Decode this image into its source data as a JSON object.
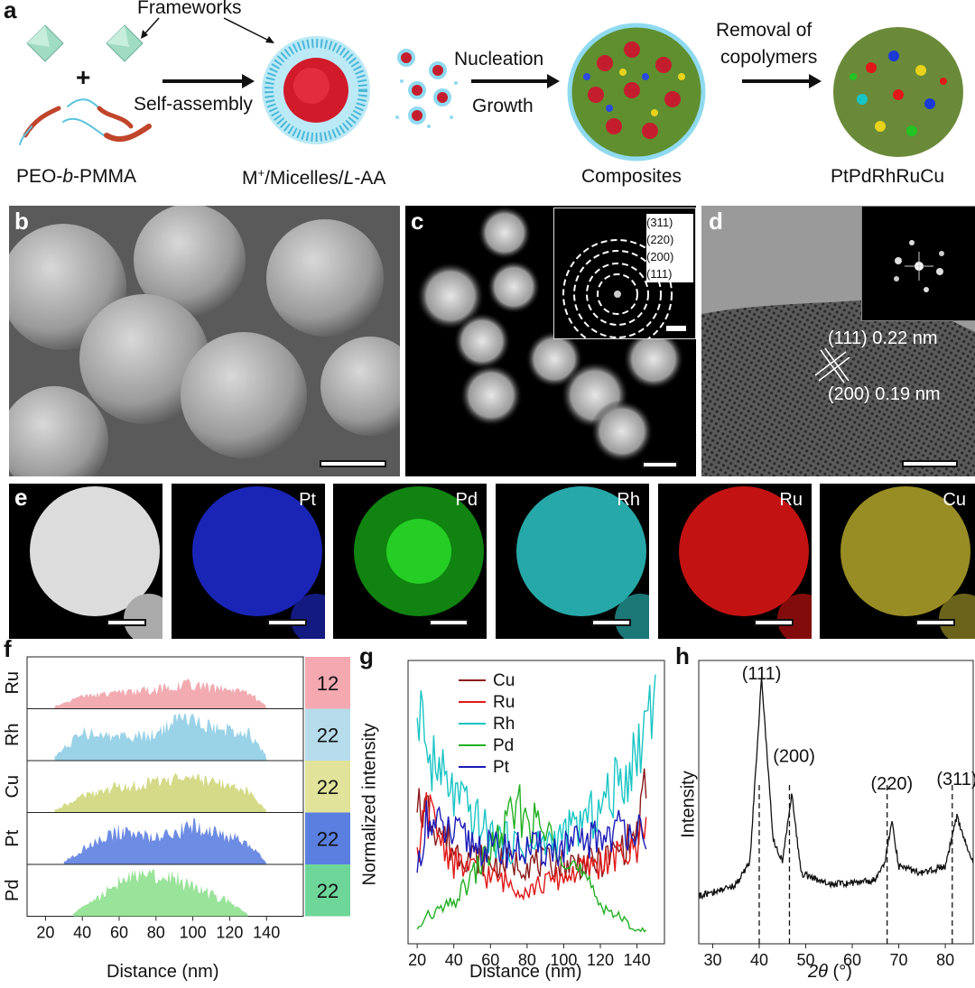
{
  "panel_a": {
    "letter": "a",
    "frameworks": "Frameworks",
    "plus": "+",
    "self_assembly": "Self-assembly",
    "nucleation": "Nucleation",
    "growth": "Growth",
    "removal_1": "Removal of",
    "removal_2": "copolymers",
    "label_copolymer_1": "PEO-",
    "label_copolymer_2": "b",
    "label_copolymer_3": "-PMMA",
    "label_micelles_1": "M",
    "label_micelles_2": "+",
    "label_micelles_3": "/Micelles/",
    "label_micelles_4": "L",
    "label_micelles_5": "-AA",
    "label_composites": "Composites",
    "label_product": "PtPdRhRuCu"
  },
  "panel_b": {
    "letter": "b"
  },
  "panel_c": {
    "letter": "c",
    "saed_planes": [
      "(311)",
      "(220)",
      "(200)",
      "(111)"
    ]
  },
  "panel_d": {
    "letter": "d",
    "fringe_1": "(111) 0.22 nm",
    "fringe_2": "(200) 0.19 nm"
  },
  "panel_e": {
    "letter": "e",
    "maps": [
      {
        "element": "",
        "color": "#ffffff"
      },
      {
        "element": "Pt",
        "color": "#1f2bd6"
      },
      {
        "element": "Pd",
        "color": "#22c322"
      },
      {
        "element": "Rh",
        "color": "#2ec6c6"
      },
      {
        "element": "Ru",
        "color": "#e01010"
      },
      {
        "element": "Cu",
        "color": "#c2b22a"
      }
    ]
  },
  "panel_f": {
    "letter": "f",
    "xlabel": "Distance (nm)",
    "xticks": [
      "20",
      "40",
      "60",
      "80",
      "100",
      "120",
      "140"
    ],
    "rows": [
      {
        "element": "Ru",
        "value": "12",
        "color": "#f0a2a8",
        "box": "#f4a9b1"
      },
      {
        "element": "Rh",
        "value": "22",
        "color": "#8fcde4",
        "box": "#b6dcec"
      },
      {
        "element": "Cu",
        "value": "22",
        "color": "#cfd67a",
        "box": "#e1e39a"
      },
      {
        "element": "Pt",
        "value": "22",
        "color": "#5d7fe0",
        "box": "#5b7fe0"
      },
      {
        "element": "Pd",
        "value": "22",
        "color": "#8fe08f",
        "box": "#6fd69a"
      }
    ]
  },
  "panel_g": {
    "letter": "g",
    "xlabel": "Distance (nm)",
    "ylabel": "Normalized intensity",
    "xticks": [
      "20",
      "40",
      "60",
      "80",
      "100",
      "120",
      "140"
    ],
    "legend": [
      {
        "name": "Cu",
        "color": "#8b1a1a"
      },
      {
        "name": "Ru",
        "color": "#e01818"
      },
      {
        "name": "Rh",
        "color": "#19c4c4"
      },
      {
        "name": "Pd",
        "color": "#22b022"
      },
      {
        "name": "Pt",
        "color": "#1a1ab8"
      }
    ]
  },
  "panel_h": {
    "letter": "h",
    "xlabel_italic": "2θ",
    "xlabel_rest": " (°)",
    "ylabel": "Intensity",
    "xticks": [
      "30",
      "40",
      "50",
      "60",
      "70",
      "80"
    ],
    "peaks": [
      "(111)",
      "(200)",
      "(220)",
      "(311)"
    ]
  },
  "chart_data": [
    {
      "panel": "f",
      "type": "area",
      "xlabel": "Distance (nm)",
      "xlim": [
        10,
        160
      ],
      "series": [
        {
          "name": "Ru",
          "x": [
            25,
            40,
            60,
            80,
            95,
            110,
            130,
            140
          ],
          "values": [
            0.05,
            0.25,
            0.35,
            0.4,
            0.55,
            0.45,
            0.35,
            0.05
          ]
        },
        {
          "name": "Rh",
          "x": [
            25,
            40,
            60,
            80,
            95,
            110,
            130,
            140
          ],
          "values": [
            0.1,
            0.6,
            0.5,
            0.55,
            0.95,
            0.7,
            0.6,
            0.1
          ]
        },
        {
          "name": "Cu",
          "x": [
            25,
            40,
            60,
            80,
            95,
            110,
            130,
            140
          ],
          "values": [
            0.05,
            0.35,
            0.55,
            0.7,
            0.75,
            0.65,
            0.45,
            0.05
          ]
        },
        {
          "name": "Pt",
          "x": [
            30,
            45,
            60,
            80,
            100,
            115,
            130,
            140
          ],
          "values": [
            0.05,
            0.45,
            0.7,
            0.6,
            0.8,
            0.65,
            0.45,
            0.05
          ]
        },
        {
          "name": "Pd",
          "x": [
            35,
            50,
            65,
            75,
            90,
            105,
            120,
            130
          ],
          "values": [
            0.05,
            0.45,
            0.85,
            0.95,
            0.8,
            0.55,
            0.3,
            0.05
          ]
        }
      ],
      "annotations": [
        "12",
        "22",
        "22",
        "22",
        "22"
      ]
    },
    {
      "panel": "g",
      "type": "line",
      "xlabel": "Distance (nm)",
      "ylabel": "Normalized intensity",
      "xlim": [
        15,
        155
      ],
      "series": [
        {
          "name": "Cu",
          "x": [
            20,
            25,
            40,
            60,
            80,
            100,
            120,
            140,
            145
          ],
          "values": [
            0.55,
            0.5,
            0.35,
            0.3,
            0.3,
            0.3,
            0.3,
            0.4,
            0.6
          ]
        },
        {
          "name": "Ru",
          "x": [
            20,
            25,
            40,
            60,
            80,
            100,
            120,
            140,
            145
          ],
          "values": [
            0.3,
            0.5,
            0.3,
            0.25,
            0.2,
            0.25,
            0.3,
            0.35,
            0.5
          ]
        },
        {
          "name": "Rh",
          "x": [
            20,
            25,
            40,
            60,
            80,
            100,
            120,
            140,
            150
          ],
          "values": [
            1.0,
            0.7,
            0.55,
            0.4,
            0.35,
            0.4,
            0.5,
            0.7,
            1.0
          ]
        },
        {
          "name": "Pd",
          "x": [
            20,
            25,
            40,
            60,
            75,
            100,
            120,
            140,
            145
          ],
          "values": [
            0.05,
            0.1,
            0.15,
            0.35,
            0.5,
            0.35,
            0.15,
            0.05,
            0.05
          ]
        },
        {
          "name": "Pt",
          "x": [
            20,
            25,
            40,
            60,
            80,
            100,
            120,
            140,
            145
          ],
          "values": [
            0.3,
            0.45,
            0.4,
            0.35,
            0.35,
            0.35,
            0.4,
            0.45,
            0.3
          ]
        }
      ]
    },
    {
      "panel": "h",
      "type": "line",
      "xlabel": "2θ (°)",
      "ylabel": "Intensity",
      "xlim": [
        27,
        86
      ],
      "series": [
        {
          "name": "XRD",
          "x": [
            27,
            35,
            38,
            40.5,
            43,
            45,
            47,
            49,
            55,
            65,
            67,
            68.5,
            70,
            75,
            80,
            82.5,
            84,
            86
          ],
          "values": [
            0.05,
            0.1,
            0.2,
            1.0,
            0.3,
            0.2,
            0.5,
            0.15,
            0.1,
            0.12,
            0.2,
            0.38,
            0.18,
            0.15,
            0.18,
            0.4,
            0.3,
            0.2
          ]
        }
      ],
      "reference_lines": [
        40,
        46.5,
        67.5,
        81.5
      ],
      "peak_labels": [
        "(111)",
        "(200)",
        "(220)",
        "(311)"
      ]
    }
  ]
}
